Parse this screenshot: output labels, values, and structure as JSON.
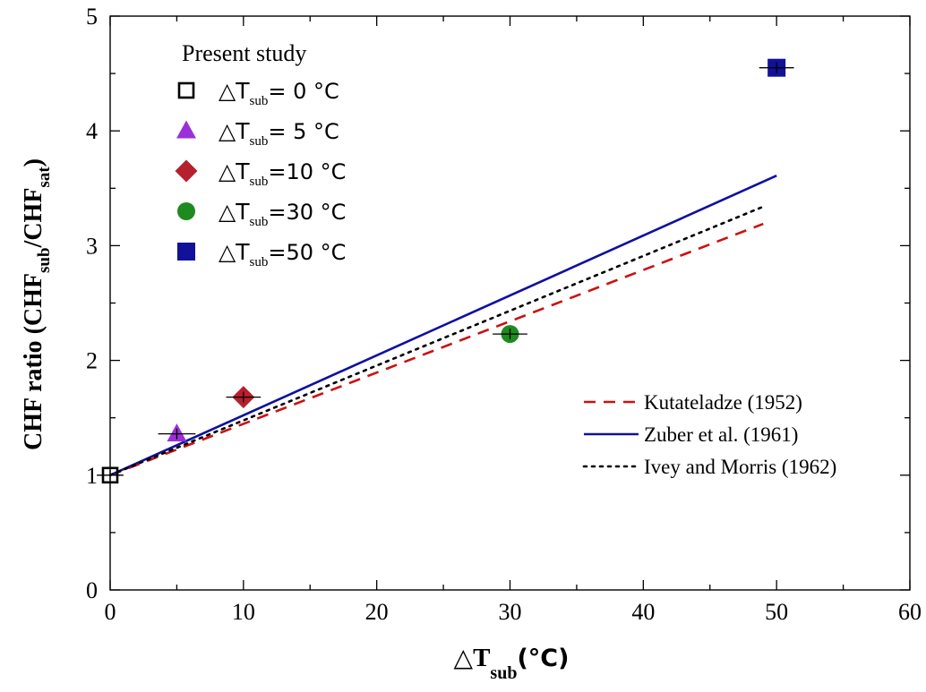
{
  "chart_data": {
    "type": "scatter",
    "xlabel": {
      "delta": "△",
      "main": "T",
      "sub": "sub",
      "unit": "(°C)"
    },
    "ylabel": {
      "pre": "CHF ratio (CHF",
      "sub1": "sub",
      "mid": "/CHF",
      "sub2": "sat",
      "post": ")"
    },
    "xlim": [
      0,
      60
    ],
    "ylim": [
      0,
      5
    ],
    "xticks": [
      0,
      10,
      20,
      30,
      40,
      50,
      60
    ],
    "yticks": [
      0,
      1,
      2,
      3,
      4,
      5
    ],
    "grid": false,
    "legend_study_title": "Present study",
    "points": [
      {
        "label_pre": "△T",
        "label_sub": "sub",
        "label_post": "=  0 °C",
        "marker": "open-square",
        "color": "#000000",
        "x": 0,
        "y": 1.0,
        "xerr": 1.0
      },
      {
        "label_pre": "△T",
        "label_sub": "sub",
        "label_post": "=  5 °C",
        "marker": "triangle",
        "color": "#9b30d9",
        "x": 5,
        "y": 1.36,
        "xerr": 1.4
      },
      {
        "label_pre": "△T",
        "label_sub": "sub",
        "label_post": "=10 °C",
        "marker": "diamond",
        "color": "#b5202e",
        "x": 10,
        "y": 1.68,
        "xerr": 1.3
      },
      {
        "label_pre": "△T",
        "label_sub": "sub",
        "label_post": "=30 °C",
        "marker": "circle",
        "color": "#1f8a1f",
        "x": 30,
        "y": 2.23,
        "xerr": 1.3
      },
      {
        "label_pre": "△T",
        "label_sub": "sub",
        "label_post": "=50 °C",
        "marker": "square",
        "color": "#11119a",
        "x": 50,
        "y": 4.55,
        "xerr": 1.3
      }
    ],
    "correlations": [
      {
        "name": "Kutateladze (1952)",
        "style": "dashed",
        "color": "#cc1111",
        "x": [
          0,
          49
        ],
        "y": [
          1.0,
          3.19
        ]
      },
      {
        "name": "Zuber et al. (1961)",
        "style": "solid",
        "color": "#1010a0",
        "x": [
          0,
          50
        ],
        "y": [
          1.0,
          3.61
        ]
      },
      {
        "name": "Ivey and Morris (1962)",
        "style": "dotted",
        "color": "#000000",
        "x": [
          0,
          49
        ],
        "y": [
          1.0,
          3.34
        ]
      }
    ]
  }
}
